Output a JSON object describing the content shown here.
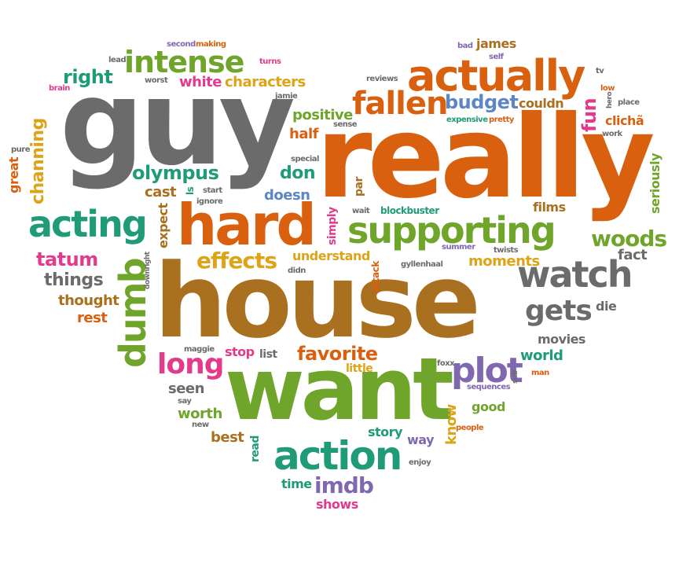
{
  "colors": {
    "gray": "#6b6b6b",
    "orange": "#d9600f",
    "brown": "#a8701f",
    "green": "#6ea52a",
    "teal": "#1f9b78",
    "purple": "#8068b0",
    "pink": "#e43a8c",
    "gold": "#dda417",
    "blue": "#5d86c4"
  },
  "words": [
    {
      "id": "guy",
      "text": "guy"
    },
    {
      "id": "really",
      "text": "really"
    },
    {
      "id": "house",
      "text": "house"
    },
    {
      "id": "want",
      "text": "want"
    },
    {
      "id": "hard",
      "text": "hard"
    },
    {
      "id": "supporting",
      "text": "supporting"
    },
    {
      "id": "actually",
      "text": "actually"
    },
    {
      "id": "acting",
      "text": "acting"
    },
    {
      "id": "action",
      "text": "action"
    },
    {
      "id": "watch",
      "text": "watch"
    },
    {
      "id": "dumb",
      "text": "dumb"
    },
    {
      "id": "intense",
      "text": "intense"
    },
    {
      "id": "fallen",
      "text": "fallen"
    },
    {
      "id": "plot",
      "text": "plot"
    },
    {
      "id": "long",
      "text": "long"
    },
    {
      "id": "gets",
      "text": "gets"
    },
    {
      "id": "effects",
      "text": "effects"
    },
    {
      "id": "favorite",
      "text": "favorite"
    },
    {
      "id": "imdb",
      "text": "imdb"
    },
    {
      "id": "woods",
      "text": "woods"
    },
    {
      "id": "budget",
      "text": "budget"
    },
    {
      "id": "olympus",
      "text": "olympus"
    },
    {
      "id": "right",
      "text": "right"
    },
    {
      "id": "channing",
      "text": "channing"
    },
    {
      "id": "tatum",
      "text": "tatum"
    },
    {
      "id": "things",
      "text": "things"
    },
    {
      "id": "thought",
      "text": "thought"
    },
    {
      "id": "rest",
      "text": "rest"
    },
    {
      "id": "characters",
      "text": "characters"
    },
    {
      "id": "white",
      "text": "white"
    },
    {
      "id": "positive",
      "text": "positive"
    },
    {
      "id": "half",
      "text": "half"
    },
    {
      "id": "don",
      "text": "don"
    },
    {
      "id": "doesn",
      "text": "doesn"
    },
    {
      "id": "cast",
      "text": "cast"
    },
    {
      "id": "expect",
      "text": "expect"
    },
    {
      "id": "understand",
      "text": "understand"
    },
    {
      "id": "moments",
      "text": "moments"
    },
    {
      "id": "films",
      "text": "films"
    },
    {
      "id": "fact",
      "text": "fact"
    },
    {
      "id": "movies",
      "text": "movies"
    },
    {
      "id": "world",
      "text": "world"
    },
    {
      "id": "seen",
      "text": "seen"
    },
    {
      "id": "worth",
      "text": "worth"
    },
    {
      "id": "best",
      "text": "best"
    },
    {
      "id": "story",
      "text": "story"
    },
    {
      "id": "way",
      "text": "way"
    },
    {
      "id": "good",
      "text": "good"
    },
    {
      "id": "time",
      "text": "time"
    },
    {
      "id": "shows",
      "text": "shows"
    },
    {
      "id": "know",
      "text": "know"
    },
    {
      "id": "fun",
      "text": "fun"
    },
    {
      "id": "seriously",
      "text": "seriously"
    },
    {
      "id": "james",
      "text": "james"
    },
    {
      "id": "couldn",
      "text": "couldn"
    },
    {
      "id": "clicha",
      "text": "clichã"
    },
    {
      "id": "blockbuster",
      "text": "blockbuster"
    },
    {
      "id": "stop",
      "text": "stop"
    },
    {
      "id": "list",
      "text": "list"
    },
    {
      "id": "little",
      "text": "little"
    },
    {
      "id": "great",
      "text": "great"
    },
    {
      "id": "simply",
      "text": "simply"
    },
    {
      "id": "par",
      "text": "par"
    },
    {
      "id": "attack",
      "text": "attack"
    },
    {
      "id": "read",
      "text": "read"
    },
    {
      "id": "die",
      "text": "die"
    },
    {
      "id": "sequences",
      "text": "sequences"
    },
    {
      "id": "expensive",
      "text": "expensive"
    },
    {
      "id": "pretty",
      "text": "pretty"
    },
    {
      "id": "reviews",
      "text": "reviews"
    },
    {
      "id": "second",
      "text": "second"
    },
    {
      "id": "making",
      "text": "making"
    },
    {
      "id": "lead",
      "text": "lead"
    },
    {
      "id": "turns",
      "text": "turns"
    },
    {
      "id": "bad",
      "text": "bad"
    },
    {
      "id": "self",
      "text": "self"
    },
    {
      "id": "tv",
      "text": "tv"
    },
    {
      "id": "brain",
      "text": "brain"
    },
    {
      "id": "worst",
      "text": "worst"
    },
    {
      "id": "jamie",
      "text": "jamie"
    },
    {
      "id": "sense",
      "text": "sense"
    },
    {
      "id": "low",
      "text": "low"
    },
    {
      "id": "hero",
      "text": "hero"
    },
    {
      "id": "place",
      "text": "place"
    },
    {
      "id": "work",
      "text": "work"
    },
    {
      "id": "pure",
      "text": "pure"
    },
    {
      "id": "special",
      "text": "special"
    },
    {
      "id": "ls",
      "text": "ls"
    },
    {
      "id": "start",
      "text": "start"
    },
    {
      "id": "ignore",
      "text": "ignore"
    },
    {
      "id": "wait",
      "text": "wait"
    },
    {
      "id": "summer",
      "text": "summer"
    },
    {
      "id": "gyllenhaal",
      "text": "gyllenhaal"
    },
    {
      "id": "twists",
      "text": "twists"
    },
    {
      "id": "downright",
      "text": "downright"
    },
    {
      "id": "didn",
      "text": "didn"
    },
    {
      "id": "maggie",
      "text": "maggie"
    },
    {
      "id": "foxx",
      "text": "foxx"
    },
    {
      "id": "sub",
      "text": "sub"
    },
    {
      "id": "man",
      "text": "man"
    },
    {
      "id": "say",
      "text": "say"
    },
    {
      "id": "new",
      "text": "new"
    },
    {
      "id": "people",
      "text": "people"
    },
    {
      "id": "enjoy",
      "text": "enjoy"
    }
  ]
}
